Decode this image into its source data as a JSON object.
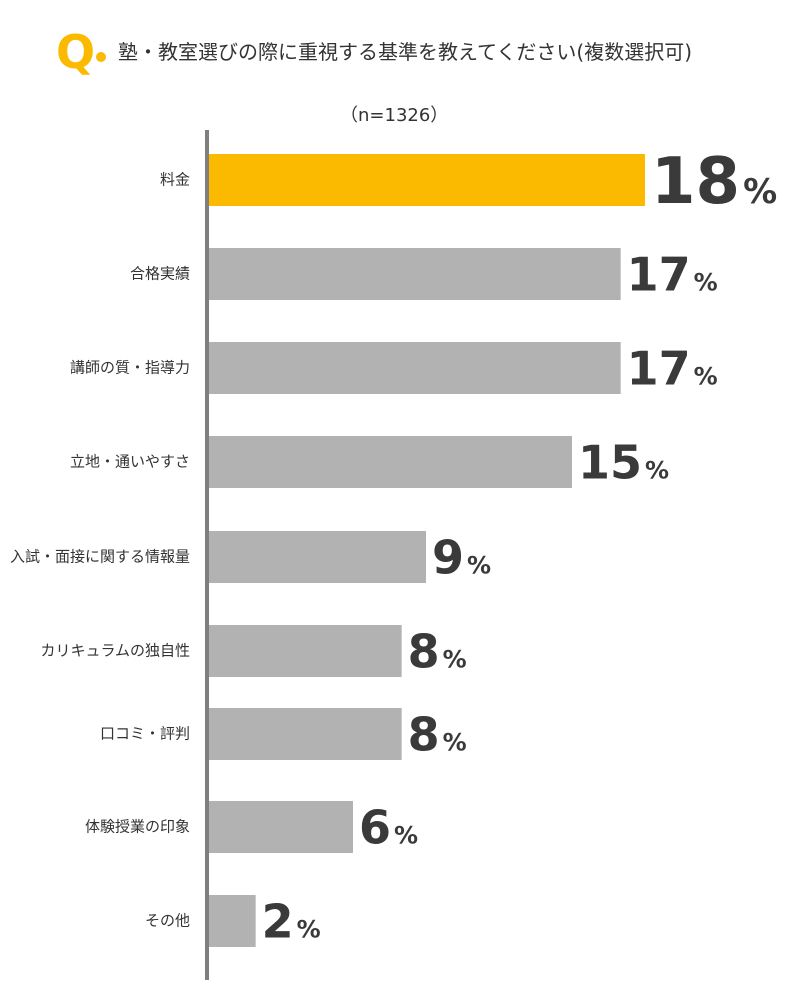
{
  "header": {
    "q_label": "Q",
    "question": "塾・教室選びの際に重視する基準を教えてください(複数選択可)",
    "sample_size": "（n=1326）"
  },
  "colors": {
    "highlight": "#FBB900",
    "bar": "#B2B2B2",
    "axis": "#7f7f7f",
    "text": "#333333"
  },
  "chart_data": {
    "type": "bar",
    "orientation": "horizontal",
    "title": "塾・教室選びの際に重視する基準を教えてください(複数選択可)",
    "subtitle": "（n=1326）",
    "categories": [
      "料金",
      "合格実績",
      "講師の質・指導力",
      "立地・通いやすさ",
      "入試・面接に関する情報量",
      "カリキュラムの独自性",
      "口コミ・評判",
      "体験授業の印象",
      "その他"
    ],
    "values": [
      18,
      17,
      17,
      15,
      9,
      8,
      8,
      6,
      2
    ],
    "value_labels": [
      "18",
      "17",
      "17",
      "15",
      "9",
      "8",
      "8",
      "6",
      "2"
    ],
    "unit": "%",
    "highlight_index": 0,
    "xlim": [
      0,
      18
    ]
  }
}
